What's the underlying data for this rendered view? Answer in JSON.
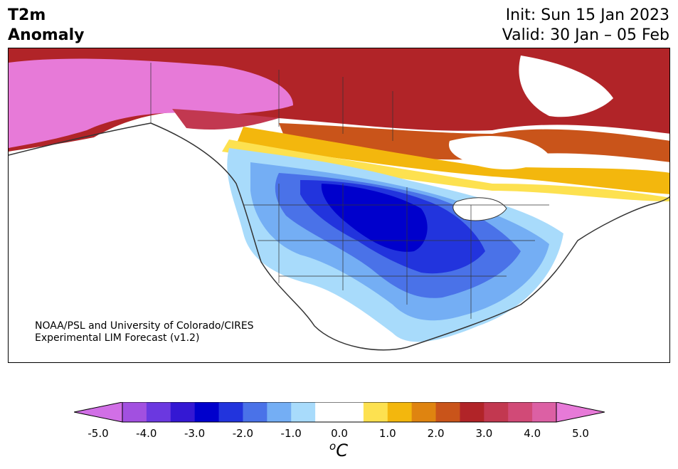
{
  "header": {
    "title_line1": "T2m",
    "title_line2": "Anomaly",
    "init_text": "Init: Sun 15 Jan 2023",
    "valid_text": "Valid: 30 Jan – 05 Feb"
  },
  "credit": {
    "line1": "NOAA/PSL and University of Colorado/CIRES",
    "line2": "Experimental LIM Forecast (v1.2)"
  },
  "colorbar": {
    "unit_main": "C",
    "unit_sup": "o",
    "ticks": [
      "-5.0",
      "-4.0",
      "-3.0",
      "-2.0",
      "-1.0",
      "0.0",
      "1.0",
      "2.0",
      "3.0",
      "4.0",
      "5.0"
    ],
    "colors": [
      "#d16fe6",
      "#a250e0",
      "#6b38e0",
      "#3418d3",
      "#0000cc",
      "#2234dd",
      "#4a72e8",
      "#74aef4",
      "#a8dbfb",
      "#ffffff",
      "#ffffff",
      "#fde150",
      "#f3b70d",
      "#df8410",
      "#c9541a",
      "#b12428",
      "#c23850",
      "#d14a77",
      "#dc60a4",
      "#e77ad8"
    ]
  }
}
